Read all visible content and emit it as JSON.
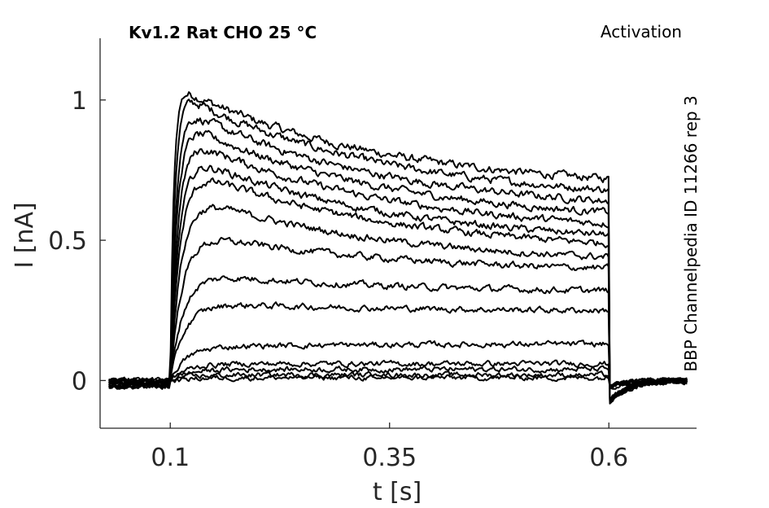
{
  "chart_data": {
    "type": "line",
    "title": "Kv1.2  Rat  CHO  25 °C",
    "protocol": "Activation",
    "source": "BBP Channelpedia ID 11266 rep 3",
    "xlabel": "t [s]",
    "ylabel": "I [nA]",
    "xlim": [
      0.02,
      0.7
    ],
    "ylim": [
      -0.17,
      1.22
    ],
    "xticks": [
      0.1,
      0.35,
      0.6
    ],
    "xtick_labels": [
      "0.1",
      "0.35",
      "0.6"
    ],
    "yticks": [
      0,
      0.5,
      1
    ],
    "ytick_labels": [
      "0",
      "0.5",
      "1"
    ],
    "grid": false,
    "legend": "none",
    "step_on": 0.1,
    "step_off": 0.6,
    "series": [
      {
        "peak": 1.06,
        "end": 0.72
      },
      {
        "peak": 1.04,
        "end": 0.68
      },
      {
        "peak": 0.99,
        "end": 0.64
      },
      {
        "peak": 0.94,
        "end": 0.6
      },
      {
        "peak": 0.89,
        "end": 0.56
      },
      {
        "peak": 0.83,
        "end": 0.52
      },
      {
        "peak": 0.78,
        "end": 0.49
      },
      {
        "peak": 0.68,
        "end": 0.44
      },
      {
        "peak": 0.54,
        "end": 0.4
      },
      {
        "peak": 0.39,
        "end": 0.32
      },
      {
        "peak": 0.28,
        "end": 0.25
      },
      {
        "peak": 0.12,
        "end": 0.13
      },
      {
        "peak": 0.06,
        "end": 0.06
      },
      {
        "peak": 0.04,
        "end": 0.04
      },
      {
        "peak": 0.02,
        "end": 0.02
      },
      {
        "peak": 0.01,
        "end": 0.01
      }
    ]
  }
}
